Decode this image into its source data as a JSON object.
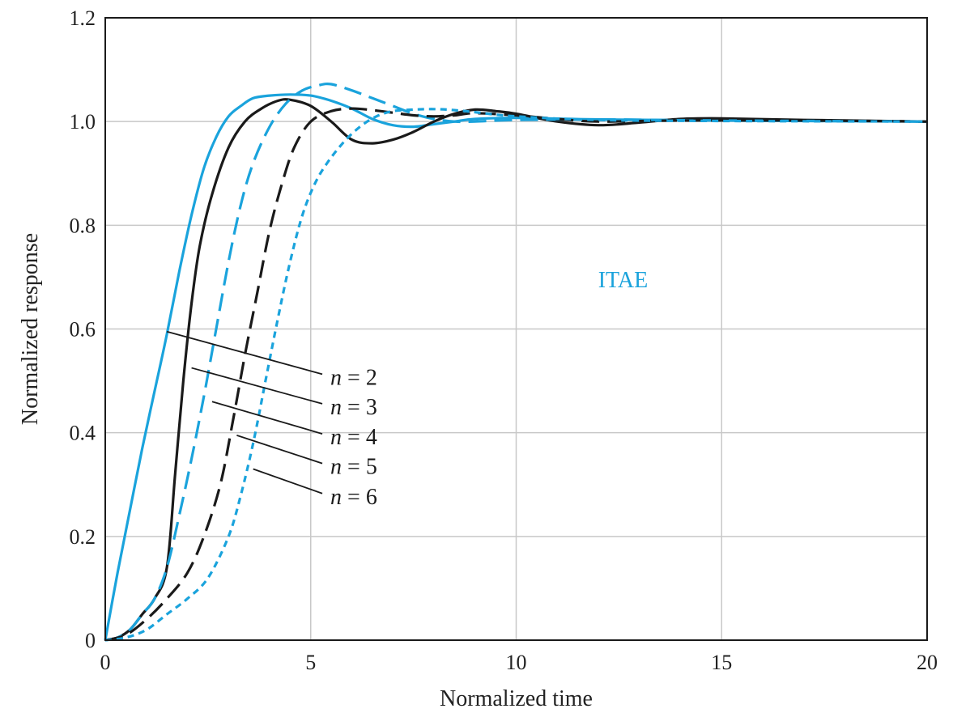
{
  "chart_data": {
    "type": "line",
    "title": "",
    "xlabel": "Normalized time",
    "ylabel": "Normalized response",
    "xlim": [
      0,
      20
    ],
    "ylim": [
      0,
      1.2
    ],
    "xticks": [
      0,
      5,
      10,
      15,
      20
    ],
    "xtick_labels": [
      "0",
      "5",
      "10",
      "15",
      "20"
    ],
    "yticks": [
      0,
      0.2,
      0.4,
      0.6,
      0.8,
      1.0,
      1.2
    ],
    "ytick_labels": [
      "0",
      "0.2",
      "0.4",
      "0.6",
      "0.8",
      "1.0",
      "1.2"
    ],
    "grid": true,
    "annotation": {
      "text": "ITAE",
      "x": 12.6,
      "y": 0.68,
      "color": "#1aa3dc"
    },
    "label_var": "n",
    "label_eq": "= ",
    "series": [
      {
        "name": "n = 2",
        "n_value": "2",
        "color": "#1aa3dc",
        "dash": "solid",
        "label_at": [
          1.5,
          0.595
        ],
        "label_pos": [
          5.4,
          0.505
        ],
        "x": [
          0,
          0.3,
          0.6,
          0.9,
          1.2,
          1.5,
          1.8,
          2.1,
          2.4,
          2.7,
          3.0,
          3.3,
          3.6,
          4.0,
          4.5,
          5.0,
          5.5,
          6.0,
          6.5,
          7.0,
          7.5,
          8.0,
          8.5,
          9.0,
          10.0,
          12.0,
          15.0,
          20.0
        ],
        "y": [
          0,
          0.13,
          0.25,
          0.37,
          0.48,
          0.59,
          0.71,
          0.82,
          0.91,
          0.97,
          1.01,
          1.03,
          1.045,
          1.05,
          1.052,
          1.05,
          1.04,
          1.025,
          1.005,
          0.993,
          0.99,
          0.995,
          1.0,
          1.005,
          1.007,
          1.004,
          1.002,
          1.0
        ]
      },
      {
        "name": "n = 3",
        "n_value": "3",
        "color": "#1a1a1a",
        "dash": "solid",
        "label_at": [
          2.1,
          0.525
        ],
        "label_pos": [
          5.4,
          0.448
        ],
        "x": [
          0,
          0.3,
          0.6,
          0.9,
          1.2,
          1.5,
          1.7,
          1.9,
          2.1,
          2.3,
          2.6,
          3.0,
          3.4,
          3.8,
          4.2,
          4.5,
          5.0,
          5.5,
          6.0,
          6.5,
          7.0,
          7.5,
          8.0,
          8.5,
          9.0,
          9.5,
          10.0,
          11.0,
          12.0,
          13.0,
          14.0,
          15.0,
          17.0,
          20.0
        ],
        "y": [
          0,
          0.005,
          0.02,
          0.05,
          0.08,
          0.14,
          0.32,
          0.5,
          0.65,
          0.76,
          0.86,
          0.95,
          1.0,
          1.025,
          1.04,
          1.042,
          1.03,
          1.0,
          0.965,
          0.958,
          0.965,
          0.98,
          1.0,
          1.015,
          1.023,
          1.02,
          1.015,
          1.0,
          0.993,
          0.998,
          1.005,
          1.006,
          1.003,
          1.0
        ]
      },
      {
        "name": "n = 4",
        "n_value": "4",
        "color": "#1aa3dc",
        "dash": "long",
        "label_at": [
          2.6,
          0.46
        ],
        "label_pos": [
          5.4,
          0.39
        ],
        "x": [
          0,
          0.3,
          0.6,
          0.9,
          1.2,
          1.5,
          1.8,
          2.1,
          2.4,
          2.7,
          3.0,
          3.3,
          3.6,
          4.0,
          4.4,
          4.8,
          5.2,
          5.5,
          6.0,
          6.5,
          7.0,
          7.5,
          8.0,
          8.5,
          9.0,
          10.0,
          12.0,
          15.0,
          20.0
        ],
        "y": [
          0,
          0.005,
          0.02,
          0.05,
          0.08,
          0.14,
          0.24,
          0.35,
          0.47,
          0.6,
          0.73,
          0.84,
          0.92,
          0.99,
          1.035,
          1.06,
          1.07,
          1.072,
          1.06,
          1.045,
          1.03,
          1.015,
          1.005,
          1.0,
          1.0,
          1.003,
          1.004,
          1.002,
          1.0
        ]
      },
      {
        "name": "n = 5",
        "n_value": "5",
        "color": "#1a1a1a",
        "dash": "long",
        "label_at": [
          3.2,
          0.395
        ],
        "label_pos": [
          5.4,
          0.333
        ],
        "x": [
          0,
          0.5,
          1.0,
          1.5,
          2.0,
          2.4,
          2.8,
          3.1,
          3.4,
          3.7,
          4.0,
          4.3,
          4.6,
          5.0,
          5.5,
          6.0,
          6.5,
          7.0,
          7.5,
          8.0,
          8.5,
          9.0,
          10.0,
          11.0,
          12.0,
          14.0,
          17.0,
          20.0
        ],
        "y": [
          0,
          0.01,
          0.04,
          0.08,
          0.13,
          0.2,
          0.3,
          0.42,
          0.55,
          0.67,
          0.79,
          0.88,
          0.95,
          1.0,
          1.02,
          1.025,
          1.022,
          1.017,
          1.012,
          1.01,
          1.012,
          1.016,
          1.012,
          1.005,
          1.0,
          1.002,
          1.002,
          1.0
        ]
      },
      {
        "name": "n = 6",
        "n_value": "6",
        "color": "#1aa3dc",
        "dash": "short",
        "label_at": [
          3.6,
          0.33
        ],
        "label_pos": [
          5.4,
          0.275
        ],
        "x": [
          0,
          0.5,
          1.0,
          1.5,
          2.0,
          2.5,
          3.0,
          3.3,
          3.6,
          3.9,
          4.2,
          4.5,
          4.8,
          5.1,
          5.4,
          5.8,
          6.2,
          6.6,
          7.0,
          7.5,
          8.0,
          8.5,
          9.0,
          10.0,
          12.0,
          15.0,
          20.0
        ],
        "y": [
          0,
          0.005,
          0.02,
          0.05,
          0.08,
          0.12,
          0.2,
          0.28,
          0.38,
          0.5,
          0.62,
          0.73,
          0.82,
          0.88,
          0.92,
          0.96,
          0.99,
          1.01,
          1.02,
          1.023,
          1.024,
          1.022,
          1.018,
          1.01,
          1.003,
          1.001,
          1.0
        ]
      }
    ]
  }
}
